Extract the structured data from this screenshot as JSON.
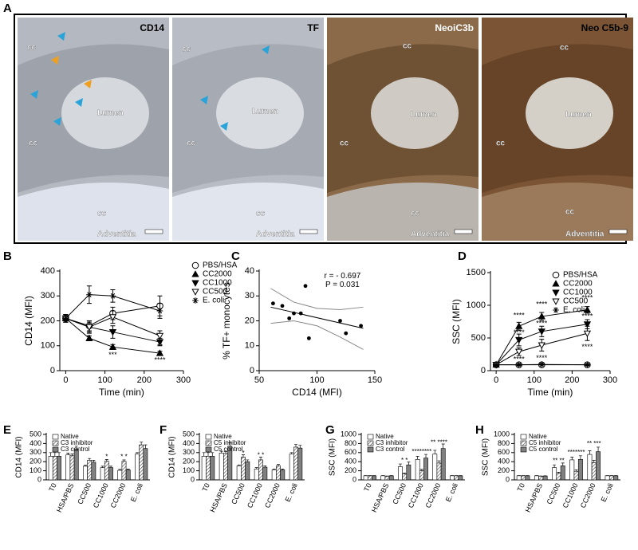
{
  "panel_a": {
    "label": "A",
    "images": [
      {
        "title": "CD14",
        "labels": [
          "cc",
          "Lumen",
          "cc",
          "cc",
          "Adventitia"
        ]
      },
      {
        "title": "TF",
        "labels": [
          "cc",
          "Lumen",
          "cc",
          "cc",
          "Adventitia"
        ]
      },
      {
        "title": "NeoiC3b",
        "labels": [
          "cc",
          "Lumen",
          "cc",
          "cc",
          "Adventitia"
        ]
      },
      {
        "title": "Neo C5b-9",
        "labels": [
          "cc",
          "Lumen",
          "cc",
          "cc",
          "Adventitia"
        ]
      }
    ]
  },
  "chart_data": [
    {
      "panel_label": "B",
      "type": "line",
      "x_label": "Time (min)",
      "y_label": "CD14 (MFI)",
      "x": [
        0,
        60,
        120,
        240
      ],
      "xlim": [
        -15,
        300
      ],
      "xticks": [
        0,
        100,
        200,
        300
      ],
      "ylim": [
        0,
        400
      ],
      "yticks": [
        0,
        100,
        200,
        300,
        400
      ],
      "legend": "right",
      "series": [
        {
          "name": "PBS/HSA",
          "color": "#000000",
          "marker": "circle-open",
          "values": [
            210,
            180,
            230,
            260
          ],
          "errors": [
            15,
            20,
            25,
            40
          ]
        },
        {
          "name": "CC2000",
          "color": "#000000",
          "marker": "triangle-up",
          "values": [
            210,
            130,
            95,
            70
          ],
          "errors": [
            15,
            10,
            10,
            8
          ]
        },
        {
          "name": "CC1000",
          "color": "#000000",
          "marker": "triangle-down",
          "values": [
            210,
            175,
            155,
            115
          ],
          "errors": [
            15,
            20,
            25,
            15
          ]
        },
        {
          "name": "CC500",
          "color": "#000000",
          "marker": "triangle-down-open",
          "values": [
            210,
            175,
            215,
            140
          ],
          "errors": [
            15,
            25,
            25,
            20
          ]
        },
        {
          "name": "E. coli",
          "color": "#000000",
          "marker": "star",
          "values": [
            210,
            305,
            300,
            240
          ],
          "errors": [
            15,
            35,
            25,
            30
          ]
        }
      ],
      "annotations": [
        {
          "text": "***",
          "x": 120,
          "y": 62
        },
        {
          "text": "**",
          "x": 240,
          "y": 95
        },
        {
          "text": "****",
          "x": 240,
          "y": 42
        }
      ]
    },
    {
      "panel_label": "C",
      "type": "scatter",
      "x_label": "CD14 (MFI)",
      "y_label": "% TF+ monocytes",
      "x": [
        62,
        70,
        76,
        80,
        86,
        90,
        93,
        120,
        125,
        138
      ],
      "values": [
        27,
        26,
        21,
        23,
        23,
        34,
        13,
        20,
        15,
        18
      ],
      "color": "#000000",
      "xlim": [
        50,
        150
      ],
      "xticks": [
        50,
        100,
        150
      ],
      "ylim": [
        0,
        40
      ],
      "yticks": [
        0,
        10,
        20,
        30,
        40
      ],
      "fit": {
        "x": [
          60,
          140
        ],
        "values": [
          25.5,
          17
        ]
      },
      "ci_upper": {
        "x": [
          60,
          80,
          100,
          120,
          140
        ],
        "values": [
          33,
          27.5,
          25,
          24.5,
          25.5
        ]
      },
      "ci_lower": {
        "x": [
          60,
          80,
          100,
          120,
          140
        ],
        "values": [
          19,
          20,
          18,
          13.5,
          8.5
        ]
      },
      "annotations": [
        {
          "text": "r = - 0.697",
          "x": 122,
          "y": 38
        },
        {
          "text": "P = 0.031",
          "x": 122,
          "y": 34.5
        }
      ]
    },
    {
      "panel_label": "D",
      "type": "line",
      "x_label": "Time (min)",
      "y_label": "SSC (MFI)",
      "x": [
        0,
        60,
        120,
        240
      ],
      "xlim": [
        -15,
        300
      ],
      "xticks": [
        0,
        100,
        200,
        300
      ],
      "ylim": [
        0,
        1500
      ],
      "yticks": [
        0,
        500,
        1000,
        1500
      ],
      "legend": "upper right",
      "series": [
        {
          "name": "PBS/HSA",
          "color": "#000000",
          "marker": "circle-open",
          "values": [
            90,
            90,
            90,
            90
          ],
          "errors": [
            10,
            10,
            10,
            10
          ]
        },
        {
          "name": "CC2000",
          "color": "#000000",
          "marker": "triangle-up",
          "values": [
            90,
            680,
            830,
            930
          ],
          "errors": [
            10,
            60,
            60,
            50
          ]
        },
        {
          "name": "CC1000",
          "color": "#000000",
          "marker": "triangle-down",
          "values": [
            90,
            470,
            600,
            710
          ],
          "errors": [
            10,
            90,
            80,
            70
          ]
        },
        {
          "name": "CC500",
          "color": "#000000",
          "marker": "triangle-down-open",
          "values": [
            90,
            290,
            390,
            570
          ],
          "errors": [
            10,
            60,
            90,
            110
          ]
        },
        {
          "name": "E. coli",
          "color": "#000000",
          "marker": "star",
          "values": [
            90,
            90,
            95,
            90
          ],
          "errors": [
            10,
            10,
            10,
            10
          ]
        }
      ],
      "annotations": [
        {
          "text": "****",
          "x": 60,
          "y": 840
        },
        {
          "text": "****",
          "x": 60,
          "y": 580
        },
        {
          "text": "****",
          "x": 60,
          "y": 170
        },
        {
          "text": "****",
          "x": 120,
          "y": 1010
        },
        {
          "text": "****",
          "x": 120,
          "y": 720
        },
        {
          "text": "****",
          "x": 120,
          "y": 190
        },
        {
          "text": "****",
          "x": 240,
          "y": 1110
        },
        {
          "text": "****",
          "x": 240,
          "y": 830
        },
        {
          "text": "****",
          "x": 240,
          "y": 360
        }
      ]
    },
    {
      "panel_label": "E",
      "type": "bar",
      "y_label": "CD14 (MFI)",
      "categories": [
        "T0",
        "HSA/PBS",
        "CC500",
        "CC1000",
        "CC2000",
        "E. coli"
      ],
      "ylim": [
        0,
        500
      ],
      "yticks": [
        0,
        100,
        200,
        300,
        400,
        500
      ],
      "legend": "upper left",
      "series": [
        {
          "name": "Native",
          "color": "#ffffff",
          "values": [
            260,
            275,
            150,
            135,
            105,
            285
          ],
          "errors": [
            40,
            20,
            10,
            15,
            10,
            15
          ]
        },
        {
          "name": "C3 inhibitor",
          "color": "#555555",
          "pattern": "hatch",
          "values": [
            260,
            265,
            215,
            205,
            205,
            385
          ],
          "errors": [
            40,
            20,
            20,
            20,
            15,
            30
          ]
        },
        {
          "name": "C3 control",
          "color": "#808080",
          "values": [
            260,
            340,
            195,
            135,
            110,
            345
          ],
          "errors": [
            40,
            30,
            20,
            15,
            10,
            40
          ]
        }
      ],
      "annotations": [
        {
          "text": "*",
          "category": "CC1000",
          "y": 250
        },
        {
          "text": "* *",
          "category": "CC2000",
          "y": 250
        }
      ]
    },
    {
      "panel_label": "F",
      "type": "bar",
      "y_label": "CD14 (MFI)",
      "categories": [
        "T0",
        "HSA/PBS",
        "CC500",
        "CC1000",
        "CC2000",
        "E. coli"
      ],
      "ylim": [
        0,
        500
      ],
      "yticks": [
        0,
        100,
        200,
        300,
        400,
        500
      ],
      "legend": "upper left",
      "series": [
        {
          "name": "Native",
          "color": "#ffffff",
          "values": [
            260,
            295,
            155,
            120,
            110,
            285
          ],
          "errors": [
            40,
            20,
            10,
            15,
            10,
            15
          ]
        },
        {
          "name": "C5 inhibitor",
          "color": "#555555",
          "pattern": "hatch",
          "values": [
            260,
            290,
            250,
            220,
            155,
            360
          ],
          "errors": [
            40,
            20,
            25,
            30,
            15,
            30
          ]
        },
        {
          "name": "C5 control",
          "color": "#808080",
          "values": [
            260,
            370,
            200,
            140,
            110,
            350
          ],
          "errors": [
            40,
            40,
            20,
            15,
            10,
            30
          ]
        }
      ],
      "annotations": [
        {
          "text": "*",
          "category": "CC500",
          "y": 290
        },
        {
          "text": "* *",
          "category": "CC1000",
          "y": 270
        }
      ]
    },
    {
      "panel_label": "G",
      "type": "bar",
      "y_label": "SSC (MFI)",
      "categories": [
        "T0",
        "HSA/PBS",
        "CC500",
        "CC1000",
        "CC2000",
        "E. coli"
      ],
      "ylim": [
        0,
        1000
      ],
      "yticks": [
        0,
        200,
        400,
        600,
        800,
        1000
      ],
      "legend": "upper left",
      "series": [
        {
          "name": "Native",
          "color": "#ffffff",
          "values": [
            90,
            90,
            290,
            450,
            570,
            90
          ],
          "errors": [
            5,
            5,
            60,
            70,
            80,
            5
          ]
        },
        {
          "name": "C3 inhibitor",
          "color": "#555555",
          "pattern": "hatch",
          "values": [
            90,
            80,
            130,
            200,
            370,
            90
          ],
          "errors": [
            5,
            5,
            20,
            30,
            50,
            5
          ]
        },
        {
          "name": "C3 control",
          "color": "#808080",
          "values": [
            90,
            90,
            330,
            480,
            690,
            90
          ],
          "errors": [
            5,
            5,
            60,
            80,
            100,
            5
          ]
        }
      ],
      "annotations": [
        {
          "text": "* *",
          "category": "CC500",
          "y": 420
        },
        {
          "text": "********",
          "category": "CC1000",
          "y": 620
        },
        {
          "text": "** ****",
          "category": "CC2000",
          "y": 820
        }
      ]
    },
    {
      "panel_label": "H",
      "type": "bar",
      "y_label": "SSC (MFI)",
      "categories": [
        "T0",
        "HSA/PBS",
        "CC500",
        "CC1000",
        "CC2000",
        "E. coli"
      ],
      "ylim": [
        0,
        1000
      ],
      "yticks": [
        0,
        200,
        400,
        600,
        800,
        1000
      ],
      "legend": "upper left",
      "series": [
        {
          "name": "Native",
          "color": "#ffffff",
          "values": [
            90,
            90,
            270,
            440,
            560,
            90
          ],
          "errors": [
            5,
            5,
            60,
            60,
            80,
            5
          ]
        },
        {
          "name": "C5 inhibitor",
          "color": "#555555",
          "pattern": "hatch",
          "values": [
            90,
            80,
            150,
            190,
            380,
            90
          ],
          "errors": [
            5,
            5,
            20,
            30,
            50,
            5
          ]
        },
        {
          "name": "C5 control",
          "color": "#808080",
          "values": [
            90,
            85,
            310,
            450,
            620,
            90
          ],
          "errors": [
            5,
            5,
            60,
            80,
            100,
            5
          ]
        }
      ],
      "annotations": [
        {
          "text": "** **",
          "category": "CC500",
          "y": 410
        },
        {
          "text": "*******",
          "category": "CC1000",
          "y": 600
        },
        {
          "text": "** ***",
          "category": "CC2000",
          "y": 790
        }
      ]
    }
  ]
}
